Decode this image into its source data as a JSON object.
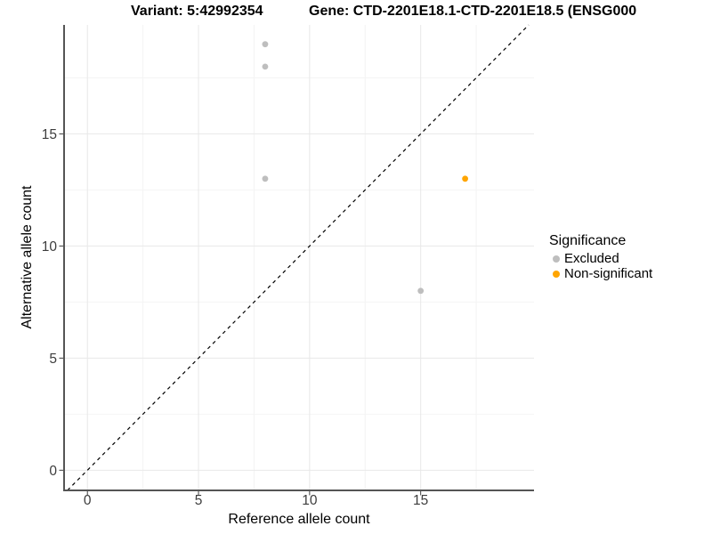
{
  "chart_data": {
    "type": "scatter",
    "title_left": "Variant: 5:42992354",
    "title_right": "Gene: CTD-2201E18.1-CTD-2201E18.5 (ENSG000",
    "xlabel": "Reference allele count",
    "ylabel": "Alternative allele count",
    "xlim": [
      -1.05,
      20.1
    ],
    "ylim": [
      -0.9,
      19.86
    ],
    "x_ticks": [
      0,
      5,
      10,
      15
    ],
    "y_ticks": [
      0,
      5,
      10,
      15
    ],
    "x_minor_gridlines": [
      2.5,
      7.5,
      12.5,
      17.5
    ],
    "y_minor_gridlines": [
      2.5,
      7.5,
      12.5,
      17.5
    ],
    "grid": "major+minor",
    "reference_line": {
      "type": "identity y=x",
      "style": "dashed",
      "color": "#000000"
    },
    "legend": {
      "title": "Significance",
      "position": "right",
      "items": [
        {
          "label": "Excluded",
          "color": "#BEBEBE"
        },
        {
          "label": "Non-significant",
          "color": "#FFA500"
        }
      ]
    },
    "series": [
      {
        "name": "Excluded",
        "color": "#BEBEBE",
        "points": [
          [
            8,
            19
          ],
          [
            8,
            18
          ],
          [
            8,
            13
          ],
          [
            15,
            8
          ]
        ]
      },
      {
        "name": "Non-significant",
        "color": "#FFA500",
        "points": [
          [
            17,
            13
          ]
        ]
      }
    ]
  },
  "colors": {
    "gridline_major": "#e8e8e8",
    "gridline_minor": "#f4f4f4",
    "axis_line": "#555555",
    "tick_text": "#3d3d3d"
  }
}
